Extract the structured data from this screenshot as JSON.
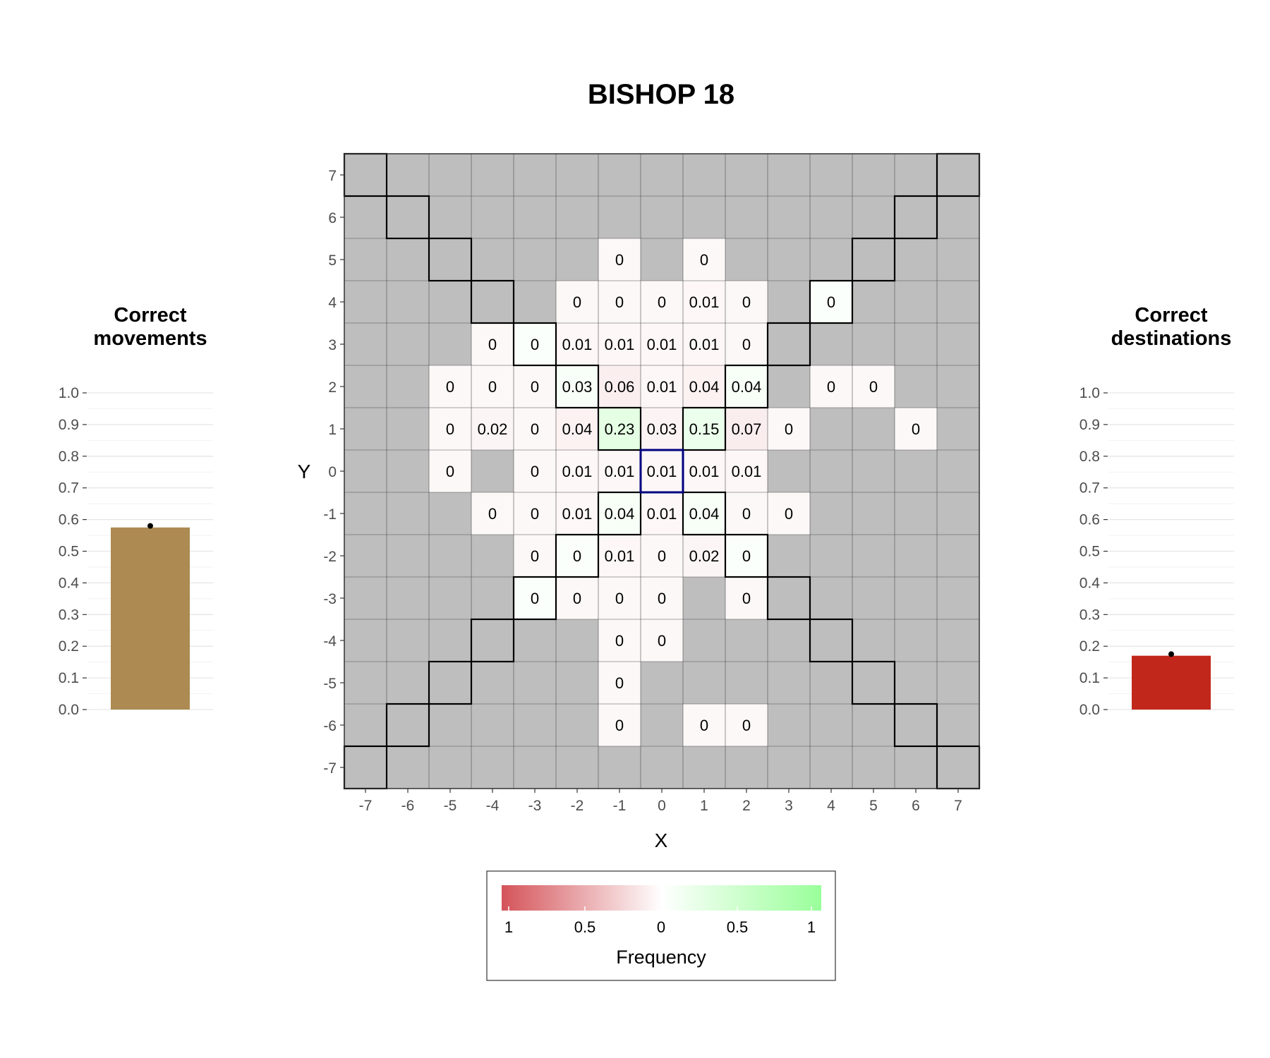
{
  "title": "BISHOP 18",
  "chart_data": [
    {
      "type": "heatmap",
      "title": "BISHOP 18",
      "xlabel": "X",
      "ylabel": "Y",
      "x_ticks": [
        "-7",
        "-6",
        "-5",
        "-4",
        "-3",
        "-2",
        "-1",
        "0",
        "1",
        "2",
        "3",
        "4",
        "5",
        "6",
        "7"
      ],
      "y_ticks": [
        "7",
        "6",
        "5",
        "4",
        "3",
        "2",
        "1",
        "0",
        "-1",
        "-2",
        "-3",
        "-4",
        "-5",
        "-6",
        "-7"
      ],
      "xlim": [
        -7,
        7
      ],
      "ylim": [
        -7,
        7
      ],
      "start_square": [
        0,
        0
      ],
      "legal_squares": [
        [
          -7,
          7
        ],
        [
          7,
          7
        ],
        [
          -6,
          6
        ],
        [
          6,
          6
        ],
        [
          -5,
          5
        ],
        [
          5,
          5
        ],
        [
          -4,
          4
        ],
        [
          4,
          4
        ],
        [
          -3,
          3
        ],
        [
          3,
          3
        ],
        [
          -2,
          2
        ],
        [
          2,
          2
        ],
        [
          -1,
          1
        ],
        [
          1,
          1
        ],
        [
          -1,
          -1
        ],
        [
          1,
          -1
        ],
        [
          -2,
          -2
        ],
        [
          2,
          -2
        ],
        [
          -3,
          -3
        ],
        [
          3,
          -3
        ],
        [
          -4,
          -4
        ],
        [
          4,
          -4
        ],
        [
          -5,
          -5
        ],
        [
          5,
          -5
        ],
        [
          -6,
          -6
        ],
        [
          6,
          -6
        ],
        [
          -7,
          -7
        ],
        [
          7,
          -7
        ]
      ],
      "cells": [
        {
          "x": -1,
          "y": 5,
          "label": "0",
          "value": 0,
          "type": "wrong"
        },
        {
          "x": 1,
          "y": 5,
          "label": "0",
          "value": 0,
          "type": "wrong"
        },
        {
          "x": -2,
          "y": 4,
          "label": "0",
          "value": 0,
          "type": "wrong"
        },
        {
          "x": -1,
          "y": 4,
          "label": "0",
          "value": 0,
          "type": "wrong"
        },
        {
          "x": 0,
          "y": 4,
          "label": "0",
          "value": 0,
          "type": "wrong"
        },
        {
          "x": 1,
          "y": 4,
          "label": "0.01",
          "value": 0.01,
          "type": "wrong"
        },
        {
          "x": 2,
          "y": 4,
          "label": "0",
          "value": 0,
          "type": "wrong"
        },
        {
          "x": 4,
          "y": 4,
          "label": "0",
          "value": 0,
          "type": "correct"
        },
        {
          "x": -4,
          "y": 3,
          "label": "0",
          "value": 0,
          "type": "wrong"
        },
        {
          "x": -3,
          "y": 3,
          "label": "0",
          "value": 0,
          "type": "correct"
        },
        {
          "x": -2,
          "y": 3,
          "label": "0.01",
          "value": 0.01,
          "type": "wrong"
        },
        {
          "x": -1,
          "y": 3,
          "label": "0.01",
          "value": 0.01,
          "type": "wrong"
        },
        {
          "x": 0,
          "y": 3,
          "label": "0.01",
          "value": 0.01,
          "type": "wrong"
        },
        {
          "x": 1,
          "y": 3,
          "label": "0.01",
          "value": 0.01,
          "type": "wrong"
        },
        {
          "x": 2,
          "y": 3,
          "label": "0",
          "value": 0,
          "type": "wrong"
        },
        {
          "x": -5,
          "y": 2,
          "label": "0",
          "value": 0,
          "type": "wrong"
        },
        {
          "x": -4,
          "y": 2,
          "label": "0",
          "value": 0,
          "type": "wrong"
        },
        {
          "x": -3,
          "y": 2,
          "label": "0",
          "value": 0,
          "type": "wrong"
        },
        {
          "x": -2,
          "y": 2,
          "label": "0.03",
          "value": 0.03,
          "type": "correct"
        },
        {
          "x": -1,
          "y": 2,
          "label": "0.06",
          "value": 0.06,
          "type": "wrong"
        },
        {
          "x": 0,
          "y": 2,
          "label": "0.01",
          "value": 0.01,
          "type": "wrong"
        },
        {
          "x": 1,
          "y": 2,
          "label": "0.04",
          "value": 0.04,
          "type": "wrong"
        },
        {
          "x": 2,
          "y": 2,
          "label": "0.04",
          "value": 0.04,
          "type": "correct"
        },
        {
          "x": 4,
          "y": 2,
          "label": "0",
          "value": 0,
          "type": "wrong"
        },
        {
          "x": 5,
          "y": 2,
          "label": "0",
          "value": 0,
          "type": "wrong"
        },
        {
          "x": -5,
          "y": 1,
          "label": "0",
          "value": 0,
          "type": "wrong"
        },
        {
          "x": -4,
          "y": 1,
          "label": "0.02",
          "value": 0.02,
          "type": "wrong"
        },
        {
          "x": -3,
          "y": 1,
          "label": "0",
          "value": 0,
          "type": "wrong"
        },
        {
          "x": -2,
          "y": 1,
          "label": "0.04",
          "value": 0.04,
          "type": "wrong"
        },
        {
          "x": -1,
          "y": 1,
          "label": "0.23",
          "value": 0.23,
          "type": "correct"
        },
        {
          "x": 0,
          "y": 1,
          "label": "0.03",
          "value": 0.03,
          "type": "wrong"
        },
        {
          "x": 1,
          "y": 1,
          "label": "0.15",
          "value": 0.15,
          "type": "correct"
        },
        {
          "x": 2,
          "y": 1,
          "label": "0.07",
          "value": 0.07,
          "type": "wrong"
        },
        {
          "x": 3,
          "y": 1,
          "label": "0",
          "value": 0,
          "type": "wrong"
        },
        {
          "x": 6,
          "y": 1,
          "label": "0",
          "value": 0,
          "type": "wrong"
        },
        {
          "x": -5,
          "y": 0,
          "label": "0",
          "value": 0,
          "type": "wrong"
        },
        {
          "x": -3,
          "y": 0,
          "label": "0",
          "value": 0,
          "type": "wrong"
        },
        {
          "x": -2,
          "y": 0,
          "label": "0.01",
          "value": 0.01,
          "type": "wrong"
        },
        {
          "x": -1,
          "y": 0,
          "label": "0.01",
          "value": 0.01,
          "type": "wrong"
        },
        {
          "x": 0,
          "y": 0,
          "label": "0.01",
          "value": 0.01,
          "type": "wrong"
        },
        {
          "x": 1,
          "y": 0,
          "label": "0.01",
          "value": 0.01,
          "type": "wrong"
        },
        {
          "x": 2,
          "y": 0,
          "label": "0.01",
          "value": 0.01,
          "type": "wrong"
        },
        {
          "x": -4,
          "y": -1,
          "label": "0",
          "value": 0,
          "type": "wrong"
        },
        {
          "x": -3,
          "y": -1,
          "label": "0",
          "value": 0,
          "type": "wrong"
        },
        {
          "x": -2,
          "y": -1,
          "label": "0.01",
          "value": 0.01,
          "type": "wrong"
        },
        {
          "x": -1,
          "y": -1,
          "label": "0.04",
          "value": 0.04,
          "type": "correct"
        },
        {
          "x": 0,
          "y": -1,
          "label": "0.01",
          "value": 0.01,
          "type": "wrong"
        },
        {
          "x": 1,
          "y": -1,
          "label": "0.04",
          "value": 0.04,
          "type": "correct"
        },
        {
          "x": 2,
          "y": -1,
          "label": "0",
          "value": 0,
          "type": "wrong"
        },
        {
          "x": 3,
          "y": -1,
          "label": "0",
          "value": 0,
          "type": "wrong"
        },
        {
          "x": -3,
          "y": -2,
          "label": "0",
          "value": 0,
          "type": "wrong"
        },
        {
          "x": -2,
          "y": -2,
          "label": "0",
          "value": 0,
          "type": "correct"
        },
        {
          "x": -1,
          "y": -2,
          "label": "0.01",
          "value": 0.01,
          "type": "wrong"
        },
        {
          "x": 0,
          "y": -2,
          "label": "0",
          "value": 0,
          "type": "wrong"
        },
        {
          "x": 1,
          "y": -2,
          "label": "0.02",
          "value": 0.02,
          "type": "wrong"
        },
        {
          "x": 2,
          "y": -2,
          "label": "0",
          "value": 0,
          "type": "correct"
        },
        {
          "x": -3,
          "y": -3,
          "label": "0",
          "value": 0,
          "type": "correct"
        },
        {
          "x": -2,
          "y": -3,
          "label": "0",
          "value": 0,
          "type": "wrong"
        },
        {
          "x": -1,
          "y": -3,
          "label": "0",
          "value": 0,
          "type": "wrong"
        },
        {
          "x": 0,
          "y": -3,
          "label": "0",
          "value": 0,
          "type": "wrong"
        },
        {
          "x": 2,
          "y": -3,
          "label": "0",
          "value": 0,
          "type": "wrong"
        },
        {
          "x": -1,
          "y": -4,
          "label": "0",
          "value": 0,
          "type": "wrong"
        },
        {
          "x": 0,
          "y": -4,
          "label": "0",
          "value": 0,
          "type": "wrong"
        },
        {
          "x": -1,
          "y": -5,
          "label": "0",
          "value": 0,
          "type": "wrong"
        },
        {
          "x": -1,
          "y": -6,
          "label": "0",
          "value": 0,
          "type": "wrong"
        },
        {
          "x": 1,
          "y": -6,
          "label": "0",
          "value": 0,
          "type": "wrong"
        },
        {
          "x": 2,
          "y": -6,
          "label": "0",
          "value": 0,
          "type": "wrong"
        }
      ],
      "legend": {
        "title": "Frequency",
        "tick_labels": [
          "1",
          "0.5",
          "0",
          "0.5",
          "1"
        ],
        "placement": "bottom",
        "wrong_color": "#d4545a",
        "neutral_color": "#ffffff",
        "correct_color": "#99ff99"
      },
      "colors": {
        "background_cell": "#bebebe",
        "grid_line": "#4d4d4d",
        "legal_outline": "#000000",
        "start_outline": "#00007f"
      }
    },
    {
      "type": "bar",
      "title": "Correct\nmovements",
      "title_lines": [
        "Correct",
        "movements"
      ],
      "categories": [
        ""
      ],
      "values": [
        0.575
      ],
      "point": 0.58,
      "ylim": [
        0,
        1
      ],
      "y_ticks": [
        "0.0",
        "0.1",
        "0.2",
        "0.3",
        "0.4",
        "0.5",
        "0.6",
        "0.7",
        "0.8",
        "0.9",
        "1.0"
      ],
      "color": "#ad8a51"
    },
    {
      "type": "bar",
      "title": "Correct\ndestinations",
      "title_lines": [
        "Correct",
        "destinations"
      ],
      "categories": [
        ""
      ],
      "values": [
        0.17
      ],
      "point": 0.175,
      "ylim": [
        0,
        1
      ],
      "y_ticks": [
        "0.0",
        "0.1",
        "0.2",
        "0.3",
        "0.4",
        "0.5",
        "0.6",
        "0.7",
        "0.8",
        "0.9",
        "1.0"
      ],
      "color": "#c1281b"
    }
  ]
}
